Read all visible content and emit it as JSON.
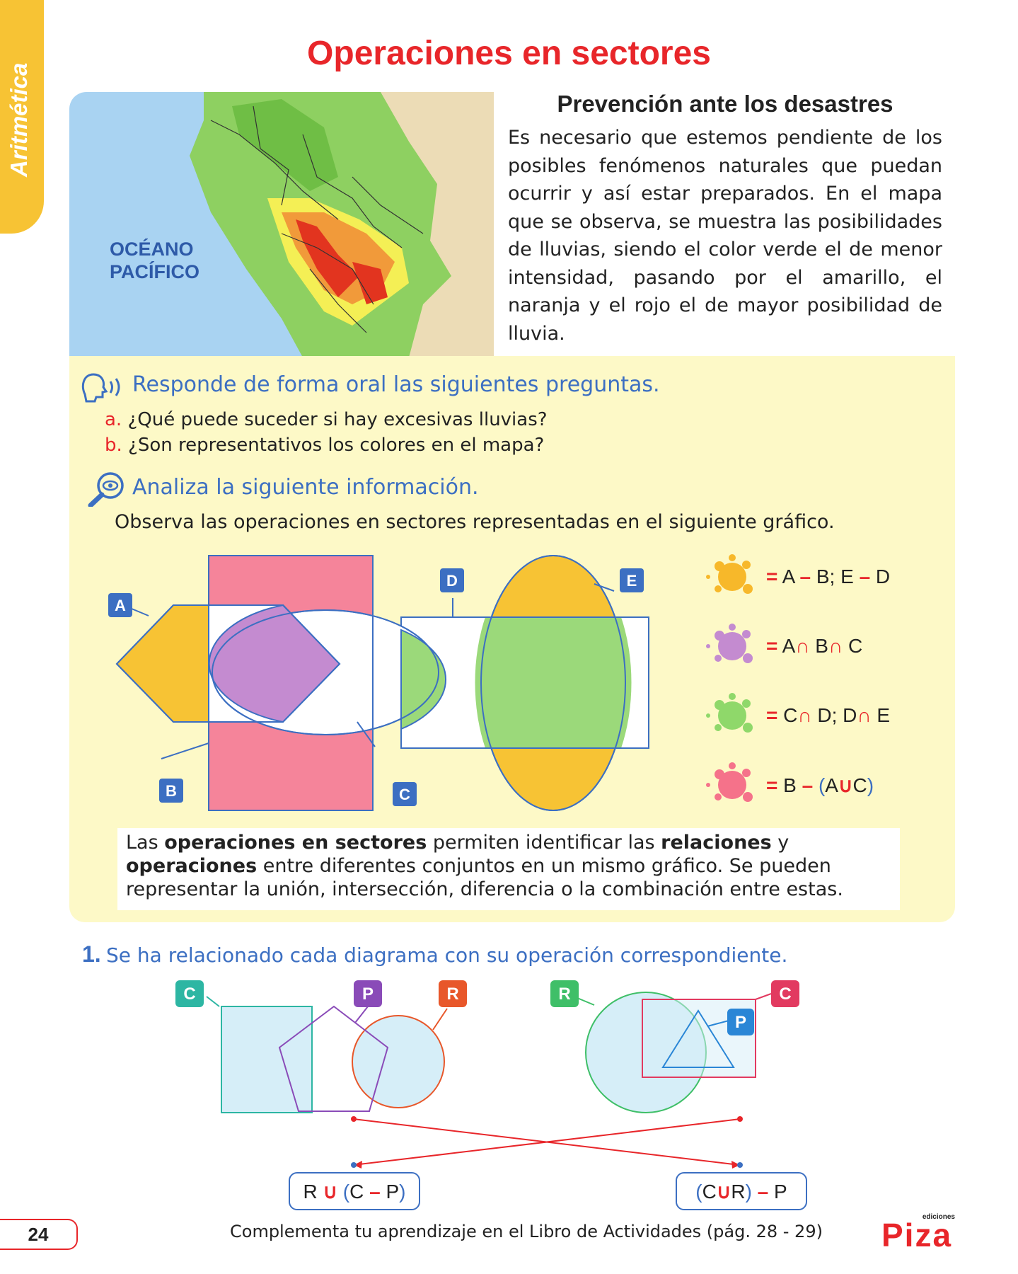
{
  "side_tab": "Aritmética",
  "title": "Operaciones en sectores",
  "map": {
    "ocean_label_1": "OCÉANO",
    "ocean_label_2": "PACÍFICO"
  },
  "intro": {
    "title": "Prevención ante los desastres",
    "text": "Es necesario que estemos pendiente de los posibles fenómenos naturales que puedan ocurrir y así estar preparados. En el mapa que se observa, se muestra las posibilidades de lluvias, siendo el color verde el de menor intensidad, pasando por el amarillo, el naranja y el rojo el de mayor posibilidad de lluvia."
  },
  "oral": {
    "heading": "Responde de forma oral las siguientes preguntas.",
    "questions": [
      {
        "letter": "a.",
        "text": "¿Qué puede suceder si hay excesivas lluvias?"
      },
      {
        "letter": "b.",
        "text": "¿Son representativos los colores en el mapa?"
      }
    ]
  },
  "analyze": {
    "heading": "Analiza la siguiente información.",
    "observe": "Observa las operaciones en sectores representadas en el siguiente gráfico."
  },
  "diagram_labels": {
    "A": "A",
    "B": "B",
    "C": "C",
    "D": "D",
    "E": "E"
  },
  "legend": [
    {
      "color": "#f7b82a",
      "eq": "= A – B; E – D"
    },
    {
      "color": "#c48bd0",
      "eq": "= A∩ B∩ C"
    },
    {
      "color": "#8fd86a",
      "eq": "= C∩ D; D∩ E"
    },
    {
      "color": "#f5728a",
      "eq": "= B – (A∪C)"
    }
  ],
  "info": {
    "p1": "Las ",
    "b1": "operaciones en sectores",
    "p2": " permiten identificar las ",
    "b2": "relaciones",
    "p3": " y ",
    "b3": "operaciones",
    "p4": " entre diferentes conjuntos en un mismo gráfico. Se pueden representar la unión, intersección, diferencia o la combinación entre estas."
  },
  "exercise": {
    "number": "1.",
    "text": "Se ha relacionado cada diagrama con su operación correspondiente.",
    "left_labels": {
      "c": "C",
      "p": "P",
      "r": "R"
    },
    "right_labels": {
      "r": "R",
      "c": "C",
      "p": "P"
    },
    "op_left": "R ∪ (C – P)",
    "op_right": "(C∪R) – P"
  },
  "footer": {
    "page": "24",
    "text": "Complementa tu aprendizaje en el Libro de Actividades (pág. 28 - 29)",
    "logo_small": "ediciones",
    "logo_big": "Piza"
  }
}
